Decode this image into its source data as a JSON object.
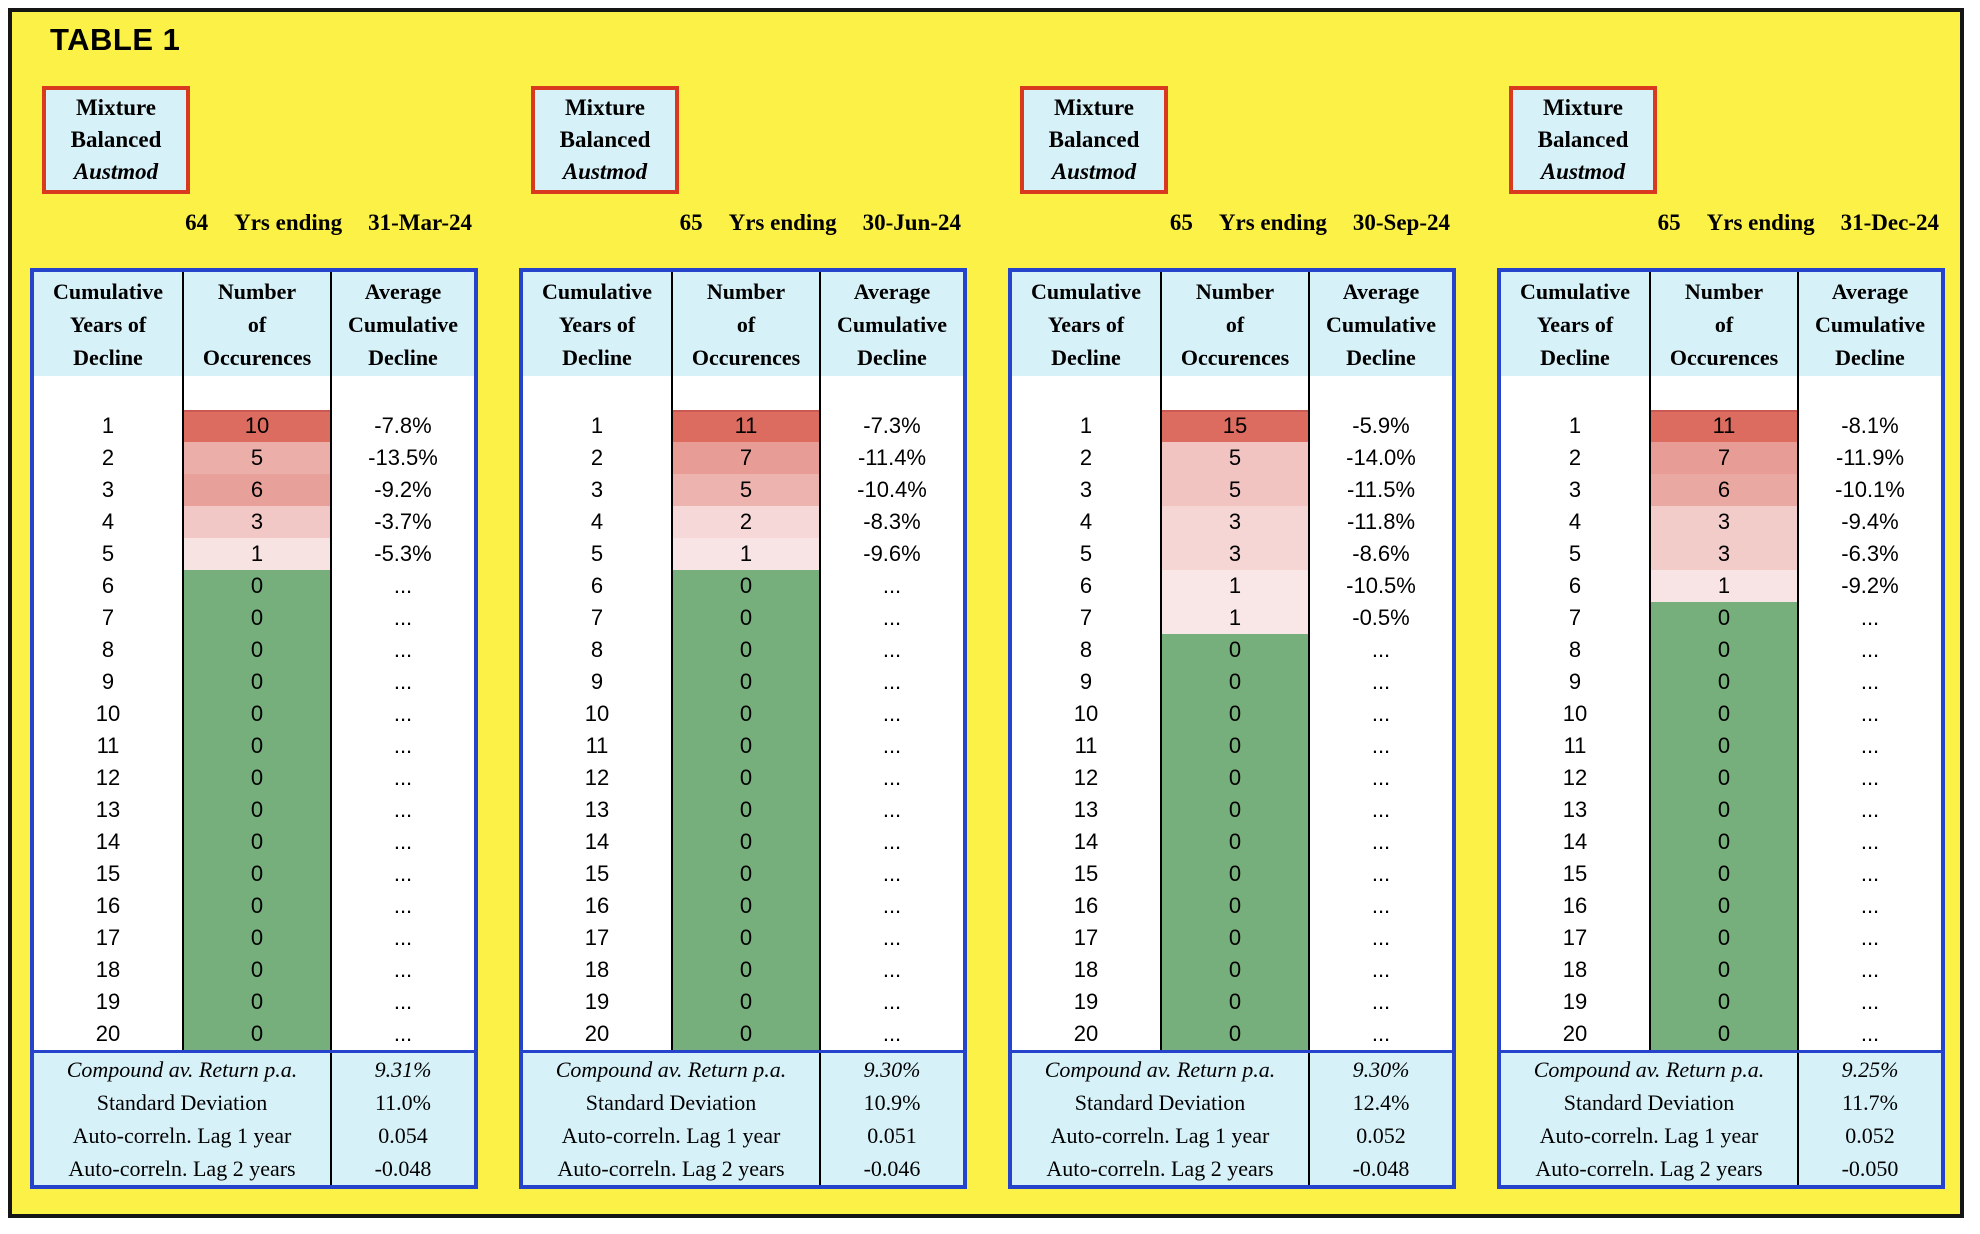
{
  "title": "TABLE 1",
  "column_headers": [
    [
      "Cumulative",
      "Years of",
      "Decline"
    ],
    [
      "Number",
      "of",
      "Occurences"
    ],
    [
      "Average",
      "Cumulative",
      "Decline"
    ]
  ],
  "summary_labels": [
    "Compound av. Return p.a.",
    "Standard Deviation",
    "Auto-correln. Lag 1 year",
    "Auto-correln. Lag 2 years"
  ],
  "colors": {
    "page_background": "#FFFFFF",
    "sheet_yellow": "#FCF147",
    "frame_border_black": "#151515",
    "table_border_blue": "#2543CB",
    "header_fill_cyan": "#D7F1F8",
    "mixture_box_border_red": "#D8391F",
    "zero_green": "#76AF7B",
    "max_red": "#DC6C60",
    "divider_black": "#000000"
  },
  "panels": [
    {
      "mixture_box": [
        "Mixture",
        "Balanced",
        "Austmod"
      ],
      "years": "64",
      "yrs_ending": "Yrs ending",
      "date": "31-Mar-24",
      "rows": [
        [
          "1",
          "10",
          "-7.8%",
          "#DC6C60"
        ],
        [
          "2",
          "5",
          "-13.5%",
          "#ECAEA9"
        ],
        [
          "3",
          "6",
          "-9.2%",
          "#E8A19A"
        ],
        [
          "4",
          "3",
          "-3.7%",
          "#F2C8C6"
        ],
        [
          "5",
          "1",
          "-5.3%",
          "#F8E3E3"
        ],
        [
          "6",
          "0",
          "...",
          "#76AF7B"
        ],
        [
          "7",
          "0",
          "...",
          "#76AF7B"
        ],
        [
          "8",
          "0",
          "...",
          "#76AF7B"
        ],
        [
          "9",
          "0",
          "...",
          "#76AF7B"
        ],
        [
          "10",
          "0",
          "...",
          "#76AF7B"
        ],
        [
          "11",
          "0",
          "...",
          "#76AF7B"
        ],
        [
          "12",
          "0",
          "...",
          "#76AF7B"
        ],
        [
          "13",
          "0",
          "...",
          "#76AF7B"
        ],
        [
          "14",
          "0",
          "...",
          "#76AF7B"
        ],
        [
          "15",
          "0",
          "...",
          "#76AF7B"
        ],
        [
          "16",
          "0",
          "...",
          "#76AF7B"
        ],
        [
          "17",
          "0",
          "...",
          "#76AF7B"
        ],
        [
          "18",
          "0",
          "...",
          "#76AF7B"
        ],
        [
          "19",
          "0",
          "...",
          "#76AF7B"
        ],
        [
          "20",
          "0",
          "...",
          "#76AF7B"
        ]
      ],
      "summary_values": [
        "9.31%",
        "11.0%",
        "0.054",
        "-0.048"
      ]
    },
    {
      "mixture_box": [
        "Mixture",
        "Balanced",
        "Austmod"
      ],
      "years": "65",
      "yrs_ending": "Yrs ending",
      "date": "30-Jun-24",
      "rows": [
        [
          "1",
          "11",
          "-7.3%",
          "#DC6C60"
        ],
        [
          "2",
          "7",
          "-11.4%",
          "#E79C95"
        ],
        [
          "3",
          "5",
          "-10.4%",
          "#EDB4AF"
        ],
        [
          "4",
          "2",
          "-8.3%",
          "#F5D8D7"
        ],
        [
          "5",
          "1",
          "-9.6%",
          "#F8E4E4"
        ],
        [
          "6",
          "0",
          "...",
          "#76AF7B"
        ],
        [
          "7",
          "0",
          "...",
          "#76AF7B"
        ],
        [
          "8",
          "0",
          "...",
          "#76AF7B"
        ],
        [
          "9",
          "0",
          "...",
          "#76AF7B"
        ],
        [
          "10",
          "0",
          "...",
          "#76AF7B"
        ],
        [
          "11",
          "0",
          "...",
          "#76AF7B"
        ],
        [
          "12",
          "0",
          "...",
          "#76AF7B"
        ],
        [
          "13",
          "0",
          "...",
          "#76AF7B"
        ],
        [
          "14",
          "0",
          "...",
          "#76AF7B"
        ],
        [
          "15",
          "0",
          "...",
          "#76AF7B"
        ],
        [
          "16",
          "0",
          "...",
          "#76AF7B"
        ],
        [
          "17",
          "0",
          "...",
          "#76AF7B"
        ],
        [
          "18",
          "0",
          "...",
          "#76AF7B"
        ],
        [
          "19",
          "0",
          "...",
          "#76AF7B"
        ],
        [
          "20",
          "0",
          "...",
          "#76AF7B"
        ]
      ],
      "summary_values": [
        "9.30%",
        "10.9%",
        "0.051",
        "-0.046"
      ]
    },
    {
      "mixture_box": [
        "Mixture",
        "Balanced",
        "Austmod"
      ],
      "years": "65",
      "yrs_ending": "Yrs ending",
      "date": "30-Sep-24",
      "rows": [
        [
          "1",
          "15",
          "-5.9%",
          "#DC6C60"
        ],
        [
          "2",
          "5",
          "-14.0%",
          "#F1C4C1"
        ],
        [
          "3",
          "5",
          "-11.5%",
          "#F1C4C1"
        ],
        [
          "4",
          "3",
          "-11.8%",
          "#F5D6D4"
        ],
        [
          "5",
          "3",
          "-8.6%",
          "#F5D6D4"
        ],
        [
          "6",
          "1",
          "-10.5%",
          "#F9E7E7"
        ],
        [
          "7",
          "1",
          "-0.5%",
          "#F9E7E7"
        ],
        [
          "8",
          "0",
          "...",
          "#76AF7B"
        ],
        [
          "9",
          "0",
          "...",
          "#76AF7B"
        ],
        [
          "10",
          "0",
          "...",
          "#76AF7B"
        ],
        [
          "11",
          "0",
          "...",
          "#76AF7B"
        ],
        [
          "12",
          "0",
          "...",
          "#76AF7B"
        ],
        [
          "13",
          "0",
          "...",
          "#76AF7B"
        ],
        [
          "14",
          "0",
          "...",
          "#76AF7B"
        ],
        [
          "15",
          "0",
          "...",
          "#76AF7B"
        ],
        [
          "16",
          "0",
          "...",
          "#76AF7B"
        ],
        [
          "17",
          "0",
          "...",
          "#76AF7B"
        ],
        [
          "18",
          "0",
          "...",
          "#76AF7B"
        ],
        [
          "19",
          "0",
          "...",
          "#76AF7B"
        ],
        [
          "20",
          "0",
          "...",
          "#76AF7B"
        ]
      ],
      "summary_values": [
        "9.30%",
        "12.4%",
        "0.052",
        "-0.048"
      ]
    },
    {
      "mixture_box": [
        "Mixture",
        "Balanced",
        "Austmod"
      ],
      "years": "65",
      "yrs_ending": "Yrs ending",
      "date": "31-Dec-24",
      "rows": [
        [
          "1",
          "11",
          "-8.1%",
          "#DC6C60"
        ],
        [
          "2",
          "7",
          "-11.9%",
          "#E79C95"
        ],
        [
          "3",
          "6",
          "-10.1%",
          "#EAA8A2"
        ],
        [
          "4",
          "3",
          "-9.4%",
          "#F2CCC9"
        ],
        [
          "5",
          "3",
          "-6.3%",
          "#F2CCC9"
        ],
        [
          "6",
          "1",
          "-9.2%",
          "#F8E4E4"
        ],
        [
          "7",
          "0",
          "...",
          "#76AF7B"
        ],
        [
          "8",
          "0",
          "...",
          "#76AF7B"
        ],
        [
          "9",
          "0",
          "...",
          "#76AF7B"
        ],
        [
          "10",
          "0",
          "...",
          "#76AF7B"
        ],
        [
          "11",
          "0",
          "...",
          "#76AF7B"
        ],
        [
          "12",
          "0",
          "...",
          "#76AF7B"
        ],
        [
          "13",
          "0",
          "...",
          "#76AF7B"
        ],
        [
          "14",
          "0",
          "...",
          "#76AF7B"
        ],
        [
          "15",
          "0",
          "...",
          "#76AF7B"
        ],
        [
          "16",
          "0",
          "...",
          "#76AF7B"
        ],
        [
          "17",
          "0",
          "...",
          "#76AF7B"
        ],
        [
          "18",
          "0",
          "...",
          "#76AF7B"
        ],
        [
          "19",
          "0",
          "...",
          "#76AF7B"
        ],
        [
          "20",
          "0",
          "...",
          "#76AF7B"
        ]
      ],
      "summary_values": [
        "9.25%",
        "11.7%",
        "0.052",
        "-0.050"
      ]
    }
  ]
}
